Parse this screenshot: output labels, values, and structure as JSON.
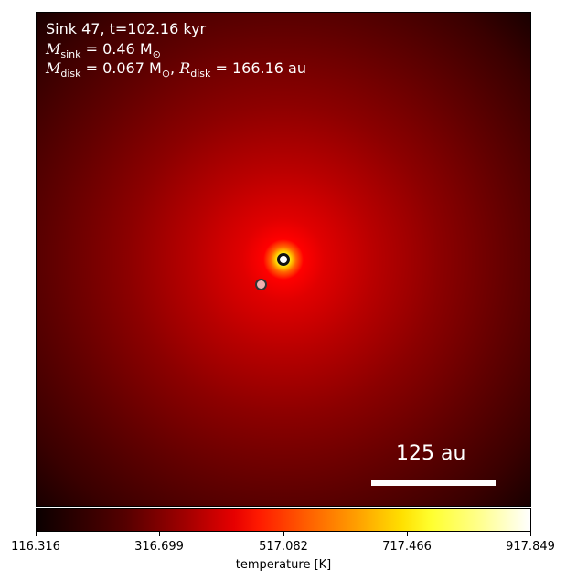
{
  "header": {
    "line1": "Sink 47, t=102.16 kyr",
    "sink_mass_var": "M",
    "sink_mass_sub": "sink",
    "sink_mass_val": " = 0.46 M",
    "sink_mass_sun": "⊙",
    "disk_mass_var": "M",
    "disk_mass_sub": "disk",
    "disk_mass_val": " = 0.067 M",
    "disk_mass_sun": "⊙",
    "sep": ", ",
    "disk_radius_var": "R",
    "disk_radius_sub": "disk",
    "disk_radius_val": " = 166.16 au"
  },
  "scale_bar": {
    "label": "125 au"
  },
  "colorbar": {
    "ticks": [
      "116.316",
      "316.699",
      "517.082",
      "717.466",
      "917.849"
    ],
    "label": "temperature [K]"
  },
  "colors": {
    "sink_primary": "#ffffff",
    "sink_secondary": "#f0b0b0"
  },
  "colormap": "hot"
}
